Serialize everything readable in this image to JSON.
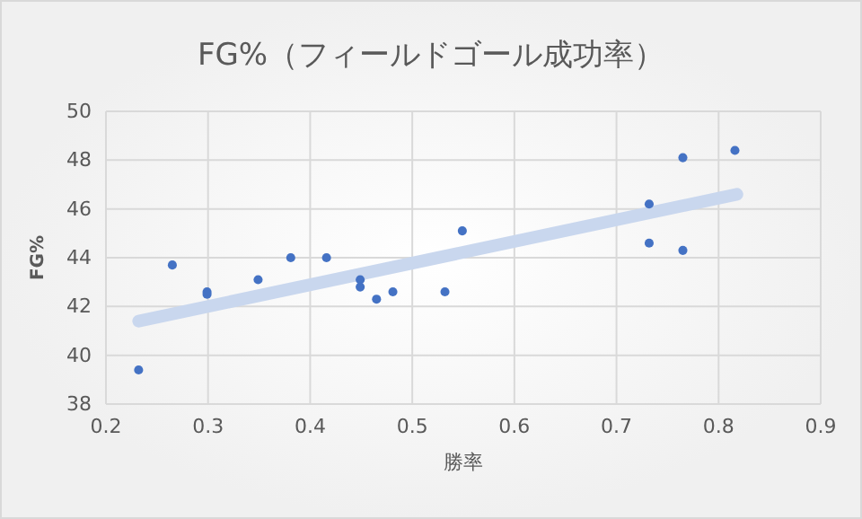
{
  "chart_data": {
    "type": "scatter",
    "title": "FG%（フィールドゴール成功率）",
    "xlabel": "勝率",
    "ylabel": "FG%",
    "xlim": [
      0.2,
      0.9
    ],
    "xticks": [
      0.2,
      0.3,
      0.4,
      0.5,
      0.6,
      0.7,
      0.8,
      0.9
    ],
    "ylim": [
      38,
      50
    ],
    "yticks": [
      38,
      40,
      42,
      44,
      46,
      48,
      50
    ],
    "grid": true,
    "series": [
      {
        "marker": "circle",
        "color": "#4472c4",
        "x": [
          0.232,
          0.265,
          0.299,
          0.299,
          0.349,
          0.381,
          0.416,
          0.449,
          0.449,
          0.465,
          0.481,
          0.532,
          0.549,
          0.732,
          0.732,
          0.765,
          0.765,
          0.816
        ],
        "values": [
          39.4,
          43.7,
          42.6,
          42.5,
          43.1,
          44.0,
          44.0,
          43.1,
          42.8,
          42.3,
          42.6,
          42.6,
          45.1,
          46.2,
          44.6,
          48.1,
          44.3,
          48.4
        ]
      },
      {
        "type": "line",
        "color": "#c9d7ee",
        "x": [
          0.232,
          0.818
        ],
        "values": [
          41.4,
          46.6
        ]
      }
    ]
  }
}
